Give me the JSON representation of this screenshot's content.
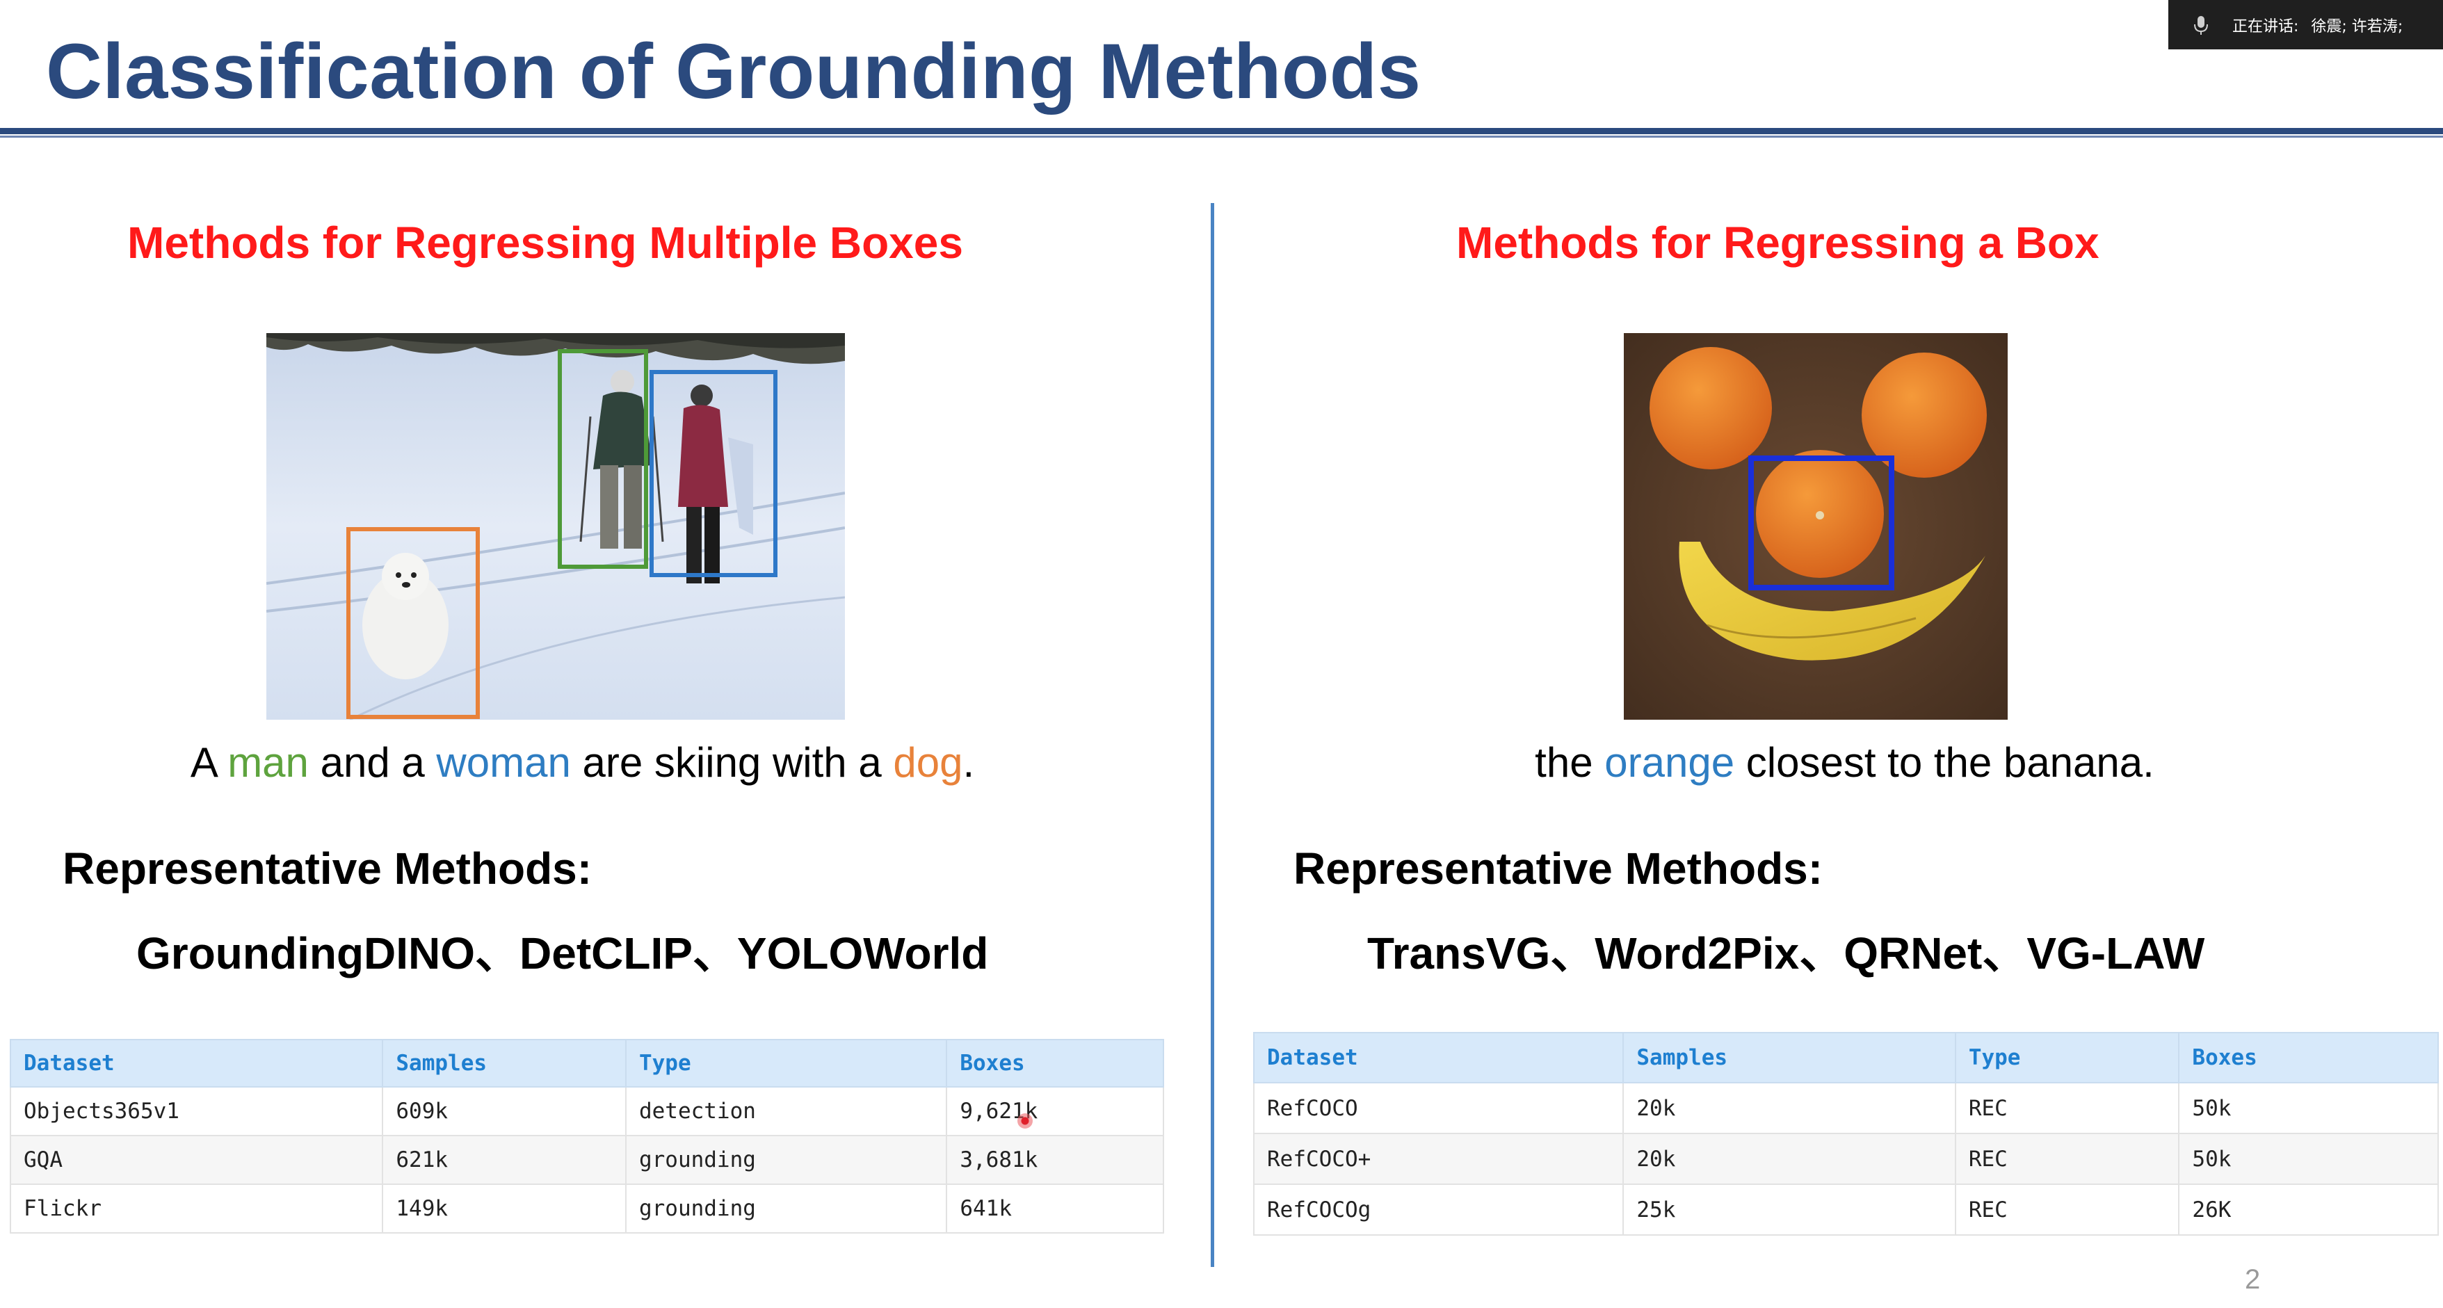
{
  "overlay": {
    "speaking_label": "正在讲话:",
    "speakers": "徐震; 许若涛;"
  },
  "slide": {
    "title": "Classification of Grounding Methods",
    "page_number": "2"
  },
  "left": {
    "heading": "Methods for Regressing Multiple Boxes",
    "caption": {
      "p1": "A ",
      "w1": "man",
      "p2": " and a ",
      "w2": "woman",
      "p3": " are skiing with a ",
      "w3": "dog",
      "p4": "."
    },
    "rep_label": "Representative Methods:",
    "rep_methods": "GroundingDINO、DetCLIP、YOLOWorld",
    "table": {
      "headers": [
        "Dataset",
        "Samples",
        "Type",
        "Boxes"
      ],
      "rows": [
        [
          "Objects365v1",
          "609k",
          "detection",
          "9,621k"
        ],
        [
          "GQA",
          "621k",
          "grounding",
          "3,681k"
        ],
        [
          "Flickr",
          "149k",
          "grounding",
          "641k"
        ]
      ]
    }
  },
  "right": {
    "heading": "Methods for Regressing a Box",
    "caption": {
      "p1": "the ",
      "w1": "orange",
      "p2": " closest to the banana."
    },
    "rep_label": "Representative Methods:",
    "rep_methods": "TransVG、Word2Pix、QRNet、VG-LAW",
    "table": {
      "headers": [
        "Dataset",
        "Samples",
        "Type",
        "Boxes"
      ],
      "rows": [
        [
          "RefCOCO",
          "20k",
          "REC",
          "50k"
        ],
        [
          "RefCOCO+",
          "20k",
          "REC",
          "50k"
        ],
        [
          "RefCOCOg",
          "25k",
          "REC",
          "26K"
        ]
      ]
    }
  },
  "colors": {
    "title": "#2b4a7e",
    "heading": "#ff1a1a",
    "man": "#5ea33e",
    "woman": "#2e7dc2",
    "dog": "#e8823a",
    "divider": "#4a84c4",
    "table_header_bg": "#d7e9fa",
    "table_header_text": "#1e7fd0"
  },
  "icons": {
    "overlay_icon": "microphone-icon"
  }
}
